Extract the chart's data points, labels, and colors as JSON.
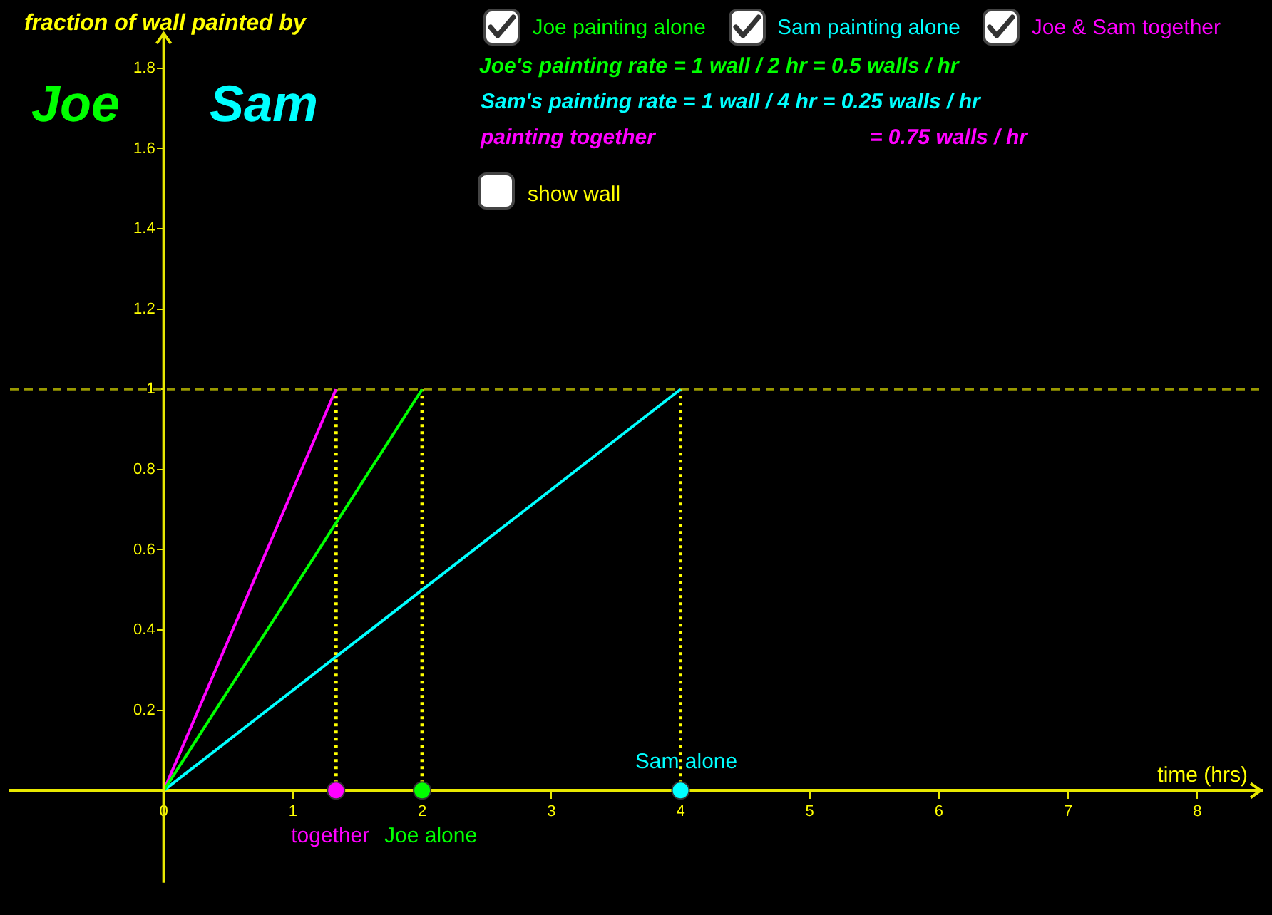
{
  "chart_data": {
    "type": "line",
    "xlabel": "time (hrs)",
    "xlim": [
      -1.19,
      8.5
    ],
    "ylim": [
      -0.23,
      1.89
    ],
    "xticks": [
      0,
      1,
      2,
      3,
      4,
      5,
      6,
      7,
      8
    ],
    "yticks": [
      0.2,
      0.4,
      0.6,
      0.8,
      1,
      1.2,
      1.4,
      1.6,
      1.8
    ],
    "legend": "top right",
    "series": [
      {
        "name": "Joe painting alone",
        "color": "#00ff00",
        "x": [
          0,
          2
        ],
        "values": [
          0,
          1
        ]
      },
      {
        "name": "Sam painting alone",
        "color": "#00ffff",
        "x": [
          0,
          4
        ],
        "values": [
          0,
          1
        ]
      },
      {
        "name": "Joe & Sam together",
        "color": "#ff00ff",
        "x": [
          0,
          1.333
        ],
        "values": [
          0,
          1
        ]
      },
      {
        "type": "line",
        "line_style": "dotted",
        "color": "#ffff00",
        "x": [
          1.333,
          1.333
        ],
        "values": [
          0,
          1
        ]
      },
      {
        "type": "line",
        "line_style": "dotted",
        "color": "#ffff00",
        "x": [
          2,
          2
        ],
        "values": [
          0,
          1
        ]
      },
      {
        "type": "line",
        "line_style": "dotted",
        "color": "#ffff00",
        "x": [
          4,
          4
        ],
        "values": [
          0,
          1
        ]
      },
      {
        "type": "scatter",
        "marker": "circle",
        "color": "#ff00ff",
        "x": [
          1.333
        ],
        "values": [
          0
        ]
      },
      {
        "type": "scatter",
        "marker": "circle",
        "color": "#00ff00",
        "x": [
          2
        ],
        "values": [
          0
        ]
      },
      {
        "type": "scatter",
        "marker": "circle",
        "color": "#00ffff",
        "x": [
          4
        ],
        "values": [
          0
        ]
      }
    ],
    "ref_lines": [
      {
        "axis": "y",
        "value": 1,
        "color": "#999900",
        "line_style": "dashed"
      }
    ],
    "annotations": [
      "fraction of wall painted by",
      "Joe",
      "Sam",
      "Joe's painting rate = 1 wall / 2 hr = 0.5 walls / hr",
      "Sam's painting rate = 1 wall / 4 hr = 0.25 walls / hr",
      "painting together",
      "= 0.75 walls / hr",
      "show wall",
      {
        "text": "together",
        "x": 1.333,
        "y": 0
      },
      {
        "text": "Joe alone",
        "x": 2,
        "y": 0
      },
      {
        "text": "Sam alone",
        "x": 4,
        "y": 0
      }
    ]
  }
}
